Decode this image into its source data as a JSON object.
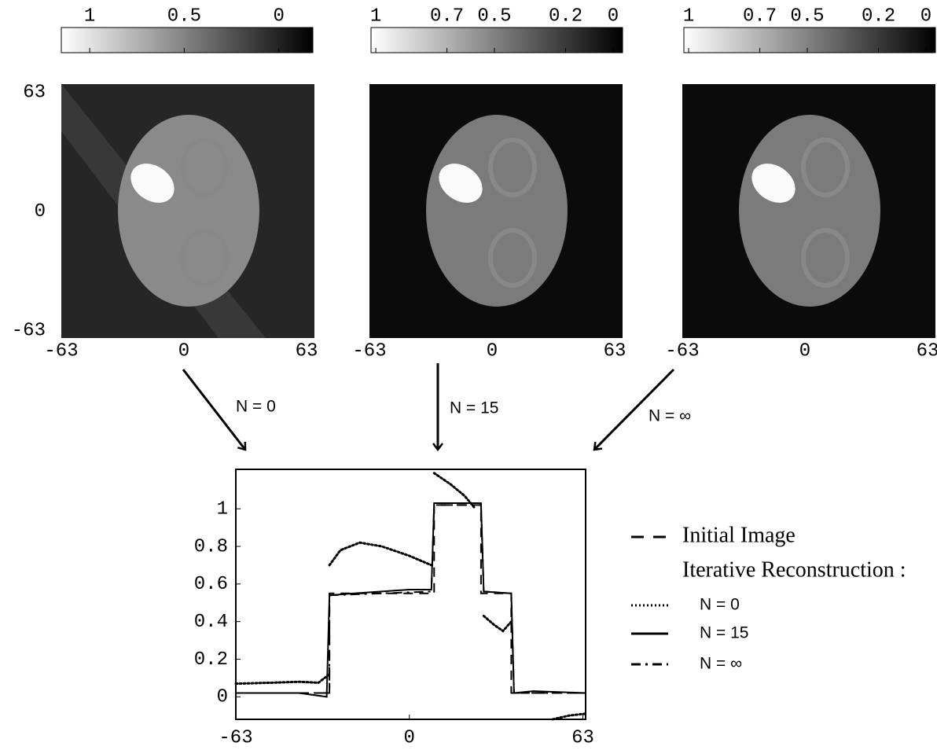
{
  "panels": [
    {
      "colorbar_ticks": [
        1,
        0.5,
        0
      ],
      "clim": [
        1.15,
        -0.18
      ],
      "xticks": [
        -63,
        0,
        63
      ],
      "xlim": [
        -63,
        63
      ],
      "yticks": [
        63,
        0,
        -63
      ],
      "ylim": [
        -63,
        63
      ],
      "arrow_label": "N = 0"
    },
    {
      "colorbar_ticks": [
        1,
        0.7,
        0.5,
        0.2,
        0
      ],
      "clim": [
        1.02,
        -0.04
      ],
      "xticks": [
        -63,
        0,
        63
      ],
      "xlim": [
        -63,
        63
      ],
      "arrow_label": "N = 15"
    },
    {
      "colorbar_ticks": [
        1,
        0.7,
        0.5,
        0.2,
        0
      ],
      "clim": [
        1.02,
        -0.04
      ],
      "xticks": [
        -63,
        0,
        63
      ],
      "xlim": [
        -63,
        63
      ],
      "arrow_label": "N = ∞"
    }
  ],
  "chart_data": {
    "type": "line",
    "xlim": [
      -63,
      64
    ],
    "ylim": [
      -0.12,
      1.21
    ],
    "xticks": [
      -63,
      0,
      63
    ],
    "yticks": [
      0,
      0.2,
      0.4,
      0.6,
      0.8,
      1
    ],
    "legend_title": "Iterative Reconstruction :",
    "series": [
      {
        "name": "Initial Image",
        "color": "#000000",
        "style": "dashed",
        "x": [
          -63,
          -29,
          -29,
          9,
          9,
          26,
          26,
          37,
          37,
          64
        ],
        "values": [
          0.02,
          0.02,
          0.55,
          0.55,
          1.02,
          1.02,
          0.55,
          0.55,
          0.02,
          0.02
        ]
      },
      {
        "name": "N = 0",
        "color": "#000000",
        "style": "dotted",
        "x": [
          -63,
          -50,
          -40,
          -33,
          -29,
          null,
          -29,
          -25,
          -18,
          -10,
          0,
          8,
          null,
          9,
          15,
          20,
          24,
          null,
          27,
          31,
          34,
          37,
          null,
          52,
          58,
          64
        ],
        "values": [
          0.07,
          0.075,
          0.08,
          0.075,
          0.12,
          null,
          0.7,
          0.78,
          0.82,
          0.8,
          0.75,
          0.7,
          null,
          1.19,
          1.13,
          1.07,
          1.0,
          null,
          0.43,
          0.38,
          0.35,
          0.4,
          null,
          -0.12,
          -0.1,
          -0.09
        ]
      },
      {
        "name": "N = 15",
        "color": "#000000",
        "style": "solid",
        "x": [
          -63,
          -40,
          -30,
          -29,
          -20,
          0,
          8,
          9,
          26,
          27,
          37,
          38,
          45,
          64
        ],
        "values": [
          0.02,
          0.02,
          0.0,
          0.54,
          0.55,
          0.57,
          0.57,
          1.03,
          1.03,
          0.56,
          0.55,
          0.02,
          0.03,
          0.02
        ]
      },
      {
        "name": "N = ∞",
        "color": "#000000",
        "style": "dashdot",
        "x": [
          -63,
          -29,
          -29,
          8,
          9,
          26,
          27,
          37,
          38,
          64
        ],
        "values": [
          0.02,
          0.02,
          0.54,
          0.56,
          1.02,
          1.02,
          0.56,
          0.55,
          0.02,
          0.02
        ]
      }
    ]
  }
}
